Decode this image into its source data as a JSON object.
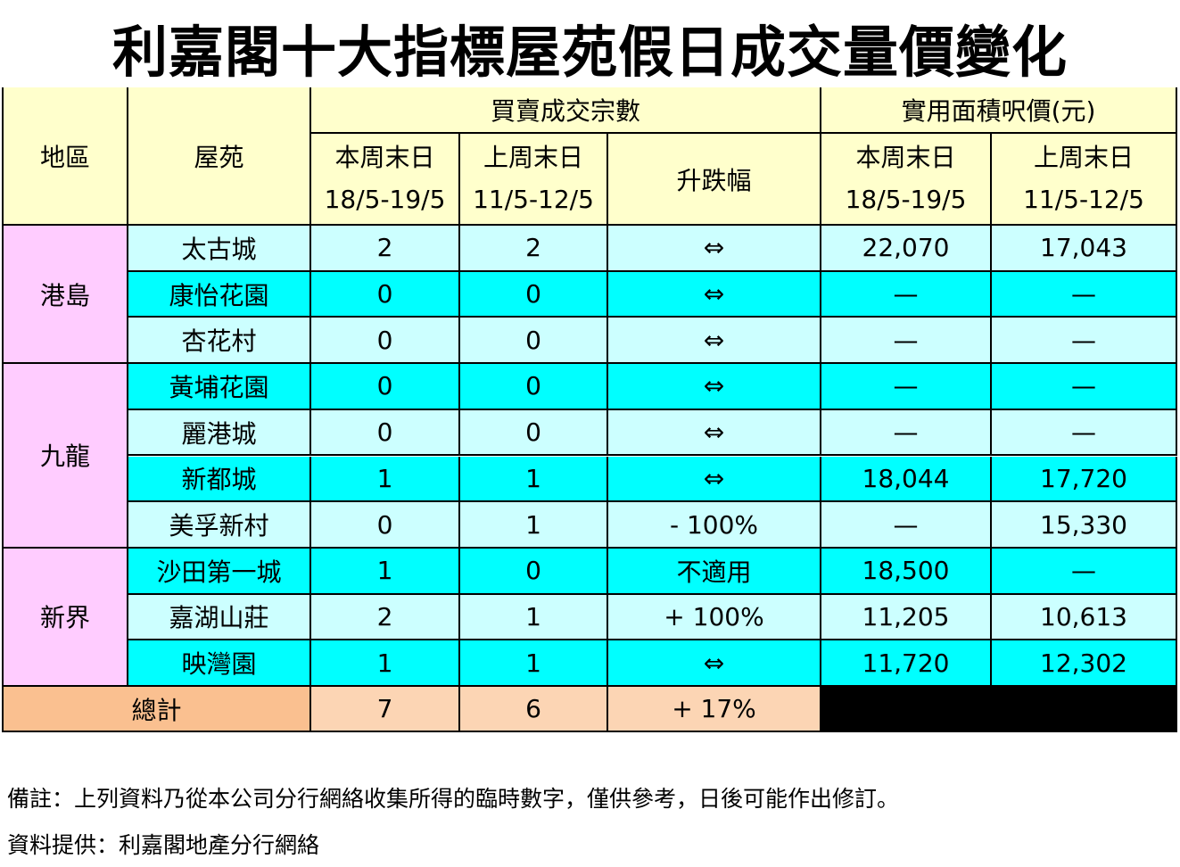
{
  "title": "利嘉閣十大指標屋苑假日成交量價變化",
  "table": {
    "group_headers": [
      "地區",
      "屋苑",
      "買賣成交宗數",
      "實用面積呎價(元)"
    ],
    "sub_headers": [
      {
        "label": "本周末日",
        "dates": "18/5-19/5"
      },
      {
        "label": "上周末日",
        "dates": "11/5-12/5"
      },
      {
        "label": "升跌幅"
      },
      {
        "label": "本周末日",
        "dates": "18/5-19/5"
      },
      {
        "label": "上周末日",
        "dates": "11/5-12/5"
      }
    ],
    "regions": [
      {
        "name": "港島",
        "rows": [
          [
            "太古城",
            2,
            2,
            "⇔",
            "22,070",
            "17,043"
          ],
          [
            "康怡花園",
            0,
            0,
            "⇔",
            "—",
            "—"
          ],
          [
            "杏花村",
            0,
            0,
            "⇔",
            "—",
            "—"
          ]
        ]
      },
      {
        "name": "九龍",
        "rows": [
          [
            "黃埔花園",
            0,
            0,
            "⇔",
            "—",
            "—"
          ],
          [
            "麗港城",
            0,
            0,
            "⇔",
            "—",
            "—"
          ],
          [
            "新都城",
            1,
            1,
            "⇔",
            "18,044",
            "17,720"
          ],
          [
            "美孚新村",
            0,
            1,
            "- 100%",
            "—",
            "15,330"
          ]
        ]
      },
      {
        "name": "新界",
        "rows": [
          [
            "沙田第一城",
            1,
            0,
            "不適用",
            "18,500",
            "—"
          ],
          [
            "嘉湖山莊",
            2,
            1,
            "+ 100%",
            "11,205",
            "10,613"
          ],
          [
            "映灣園",
            1,
            1,
            "⇔",
            "11,720",
            "12,302"
          ]
        ]
      }
    ],
    "total": [
      "總計",
      7,
      6,
      "+ 17%"
    ]
  },
  "notes": [
    "備註：上列資料乃從本公司分行網絡收集所得的臨時數字，僅供參考，日後可能作出修訂。",
    "資料提供：利嘉閣地產分行網絡"
  ]
}
